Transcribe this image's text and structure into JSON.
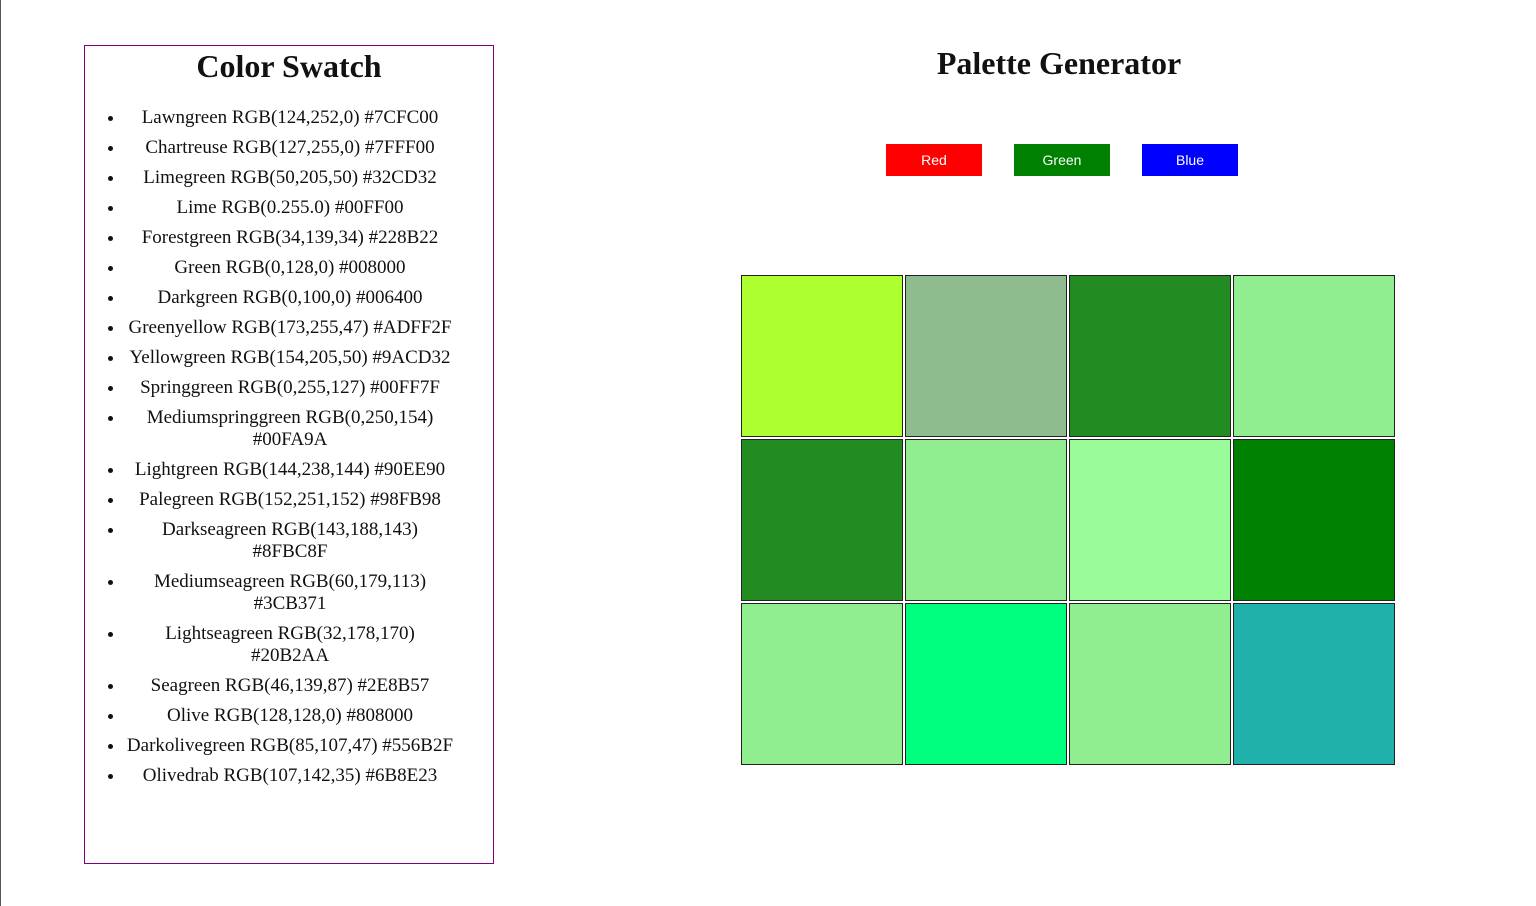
{
  "swatch": {
    "title": "Color Swatch",
    "items": [
      "Lawngreen RGB(124,252,0) #7CFC00",
      "Chartreuse RGB(127,255,0) #7FFF00",
      "Limegreen RGB(50,205,50) #32CD32",
      "Lime RGB(0.255.0) #00FF00",
      "Forestgreen RGB(34,139,34) #228B22",
      "Green RGB(0,128,0) #008000",
      "Darkgreen RGB(0,100,0) #006400",
      "Greenyellow RGB(173,255,47) #ADFF2F",
      "Yellowgreen RGB(154,205,50) #9ACD32",
      "Springgreen RGB(0,255,127) #00FF7F",
      "Mediumspringgreen RGB(0,250,154) #00FA9A",
      "Lightgreen RGB(144,238,144) #90EE90",
      "Palegreen RGB(152,251,152) #98FB98",
      "Darkseagreen RGB(143,188,143) #8FBC8F",
      "Mediumseagreen RGB(60,179,113) #3CB371",
      "Lightseagreen RGB(32,178,170) #20B2AA",
      "Seagreen RGB(46,139,87) #2E8B57",
      "Olive RGB(128,128,0) #808000",
      "Darkolivegreen RGB(85,107,47) #556B2F",
      "Olivedrab RGB(107,142,35) #6B8E23"
    ],
    "border_color": "#800080"
  },
  "palette": {
    "title": "Palette Generator",
    "buttons": [
      {
        "label": "Red",
        "color": "#FF0000"
      },
      {
        "label": "Green",
        "color": "#008000"
      },
      {
        "label": "Blue",
        "color": "#0000FF"
      }
    ],
    "cells": [
      "#ADFF2F",
      "#8FBC8F",
      "#228B22",
      "#90EE90",
      "#228B22",
      "#90EE90",
      "#98FB98",
      "#008000",
      "#90EE90",
      "#00FF7F",
      "#90EE90",
      "#20B2AA"
    ]
  }
}
